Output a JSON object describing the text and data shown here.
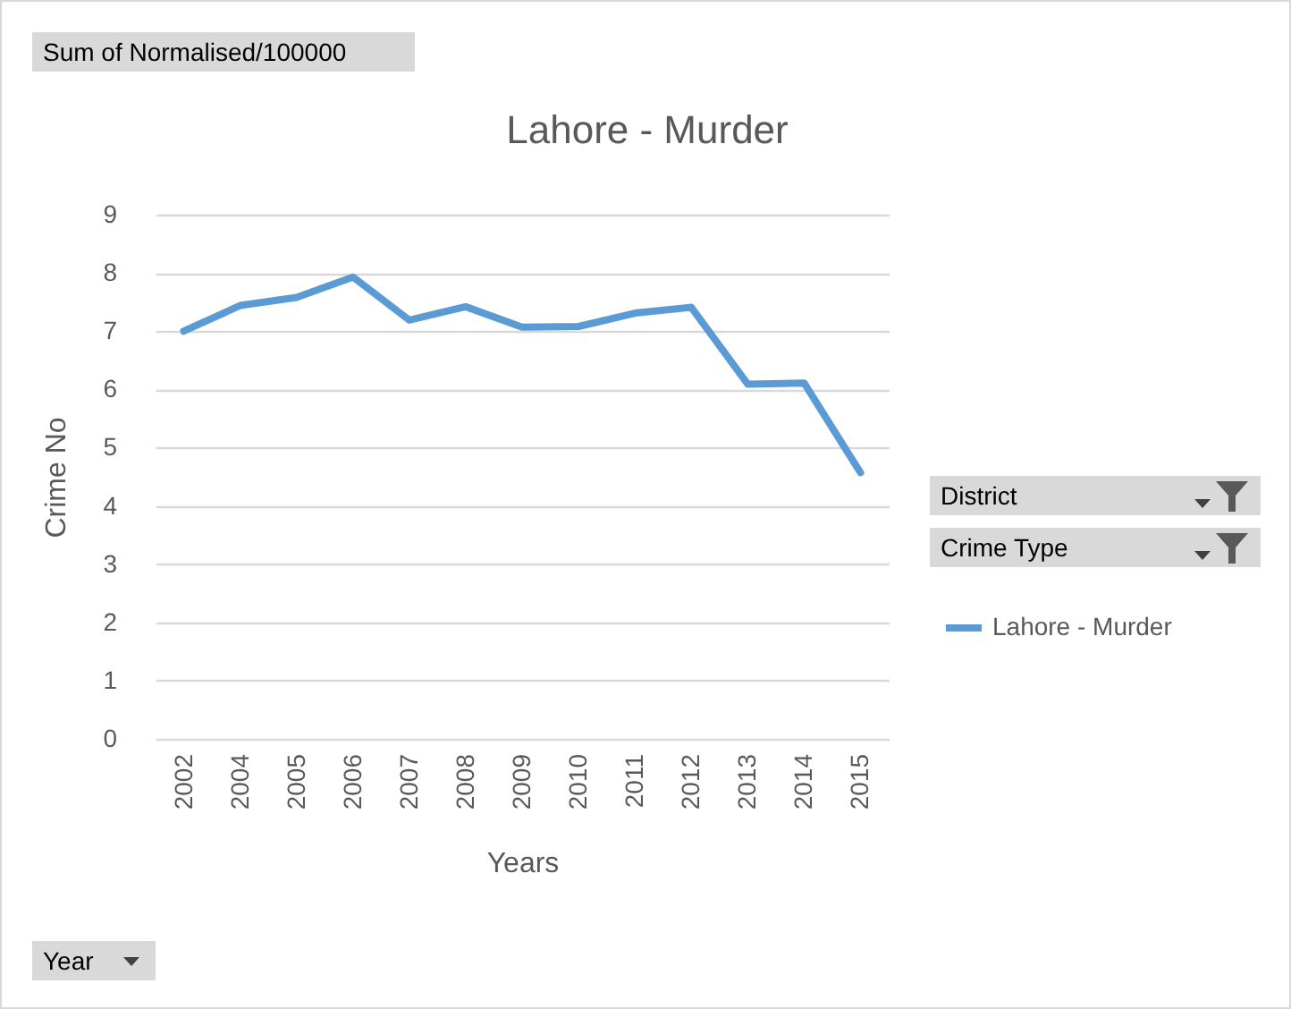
{
  "chart_data": {
    "type": "line",
    "title": "Lahore - Murder",
    "xlabel": "Years",
    "ylabel": "Crime No",
    "categories": [
      "2002",
      "2004",
      "2005",
      "2006",
      "2007",
      "2008",
      "2009",
      "2010",
      "2011",
      "2012",
      "2013",
      "2014",
      "2015"
    ],
    "series": [
      {
        "name": "Lahore - Murder",
        "color": "#5b9bd5",
        "values": [
          7.0,
          7.44,
          7.58,
          7.93,
          7.19,
          7.42,
          7.07,
          7.08,
          7.31,
          7.41,
          6.09,
          6.11,
          4.57
        ]
      }
    ],
    "ylim": [
      0,
      9
    ],
    "yticks": [
      0,
      1,
      2,
      3,
      4,
      5,
      6,
      7,
      8,
      9
    ],
    "grid": "y",
    "legend": "right",
    "marker": "none",
    "line_style": "solid",
    "annotations": [
      "Sum of Normalised/100000",
      "District",
      "Crime Type",
      "Year"
    ]
  }
}
